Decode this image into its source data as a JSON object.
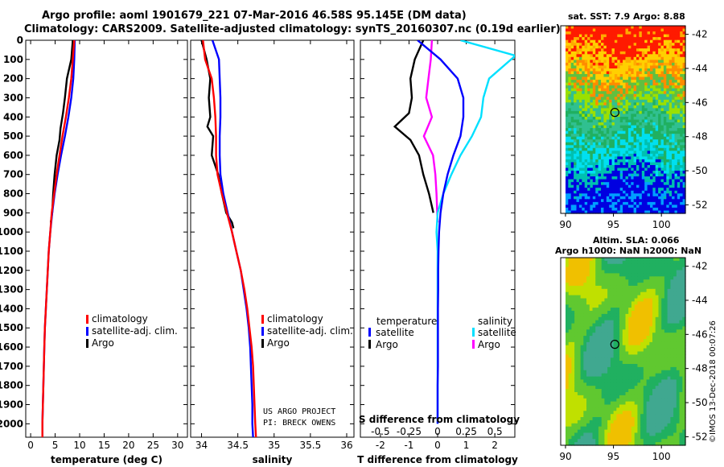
{
  "header": {
    "title_line1": "Argo profile: aoml 1901679_221 07-Mar-2016 46.58S 95.145E (DM data)",
    "title_line2": "Climatology: CARS2009. Satellite-adjusted climatology: synTS_20160307.nc (0.19d earlier)"
  },
  "colors": {
    "climatology": "#ff0000",
    "satellite": "#0000ff",
    "argo": "#000000",
    "satellite_salinity": "#00e0ff",
    "argo_salinity": "#ff00ff"
  },
  "chart_data": [
    {
      "type": "line",
      "name": "temperature-panel",
      "xlabel": "temperature (deg C)",
      "ylabel": "",
      "xlim": [
        -1,
        32
      ],
      "ylim": [
        2070,
        0
      ],
      "xticks": [
        "0",
        "5",
        "10",
        "15",
        "20",
        "25",
        "30"
      ],
      "xtick_values": [
        0,
        5,
        10,
        15,
        20,
        25,
        30
      ],
      "yticks": [
        "0",
        "100",
        "200",
        "300",
        "400",
        "500",
        "600",
        "700",
        "800",
        "900",
        "1000",
        "1100",
        "1200",
        "1300",
        "1400",
        "1500",
        "1600",
        "1700",
        "1800",
        "1900",
        "2000"
      ],
      "ytick_values": [
        0,
        100,
        200,
        300,
        400,
        500,
        600,
        700,
        800,
        900,
        1000,
        1100,
        1200,
        1300,
        1400,
        1500,
        1600,
        1700,
        1800,
        1900,
        2000
      ],
      "legend": [
        "climatology",
        "satellite-adj. clim.",
        "Argo"
      ],
      "series": [
        {
          "name": "climatology",
          "color": "#ff0000",
          "x": [
            8.9,
            8.6,
            8.3,
            7.8,
            7.2,
            6.5,
            5.9,
            5.3,
            4.8,
            4.3,
            4.0,
            3.7,
            3.5,
            3.3,
            3.1,
            2.9,
            2.8,
            2.7,
            2.6,
            2.5,
            2.4,
            2.4
          ],
          "y": [
            0,
            100,
            200,
            300,
            400,
            500,
            600,
            700,
            800,
            900,
            1000,
            1100,
            1200,
            1300,
            1400,
            1500,
            1600,
            1700,
            1800,
            1900,
            2000,
            2070
          ]
        },
        {
          "name": "satellite-adj. clim.",
          "color": "#0000ff",
          "x": [
            9.0,
            8.9,
            8.7,
            8.3,
            7.7,
            7.0,
            6.2,
            5.5,
            4.9,
            4.4,
            4.0,
            3.7,
            3.5,
            3.3,
            3.1,
            2.9,
            2.8,
            2.7,
            2.6,
            2.5,
            2.4,
            2.4
          ],
          "y": [
            0,
            100,
            200,
            300,
            400,
            500,
            600,
            700,
            800,
            900,
            1000,
            1100,
            1200,
            1300,
            1400,
            1500,
            1600,
            1700,
            1800,
            1900,
            2000,
            2070
          ]
        },
        {
          "name": "Argo",
          "color": "#000000",
          "x": [
            8.6,
            8.3,
            7.4,
            7.0,
            6.6,
            6.1,
            5.9,
            5.3,
            4.9,
            4.6,
            4.4,
            4.1
          ],
          "y": [
            0,
            100,
            200,
            300,
            380,
            460,
            520,
            600,
            700,
            800,
            900,
            950
          ]
        }
      ]
    },
    {
      "type": "line",
      "name": "salinity-panel",
      "xlabel": "salinity",
      "xlim": [
        33.85,
        36.1
      ],
      "ylim": [
        2070,
        0
      ],
      "xticks": [
        "34",
        "34.5",
        "35",
        "35.5",
        "36"
      ],
      "xtick_values": [
        34,
        34.5,
        35,
        35.5,
        36
      ],
      "legend": [
        "climatology",
        "satellite-adj. clim.",
        "Argo"
      ],
      "series": [
        {
          "name": "climatology",
          "color": "#ff0000",
          "x": [
            34.02,
            34.05,
            34.14,
            34.17,
            34.19,
            34.2,
            34.2,
            34.22,
            34.28,
            34.35,
            34.42,
            34.48,
            34.54,
            34.59,
            34.63,
            34.66,
            34.69,
            34.71,
            34.72,
            34.73,
            34.74,
            34.75
          ],
          "y": [
            0,
            100,
            200,
            300,
            400,
            500,
            600,
            700,
            800,
            900,
            1000,
            1100,
            1200,
            1300,
            1400,
            1500,
            1600,
            1700,
            1800,
            1900,
            2000,
            2070
          ]
        },
        {
          "name": "satellite-adj. clim.",
          "color": "#0000ff",
          "x": [
            34.15,
            34.24,
            34.25,
            34.26,
            34.26,
            34.25,
            34.25,
            34.26,
            34.3,
            34.36,
            34.42,
            34.48,
            34.54,
            34.58,
            34.62,
            34.65,
            34.67,
            34.68,
            34.69,
            34.7,
            34.7,
            34.71
          ],
          "y": [
            0,
            100,
            200,
            300,
            400,
            500,
            600,
            700,
            800,
            900,
            1000,
            1100,
            1200,
            1300,
            1400,
            1500,
            1600,
            1700,
            1800,
            1900,
            2000,
            2070
          ]
        },
        {
          "name": "Argo",
          "color": "#000000",
          "x": [
            34.0,
            34.07,
            34.12,
            34.1,
            34.12,
            34.08,
            34.16,
            34.14,
            34.23,
            34.28,
            34.34,
            34.42,
            34.44
          ],
          "y": [
            0,
            100,
            200,
            300,
            400,
            450,
            500,
            600,
            700,
            800,
            900,
            950,
            980
          ]
        }
      ]
    },
    {
      "type": "line",
      "name": "difference-panel",
      "xlabel": "T difference from climatology",
      "top_axis_label": "S difference from climatology",
      "xlim": [
        -2.7,
        2.7
      ],
      "ylim": [
        2070,
        0
      ],
      "xticks": [
        "-2",
        "-1",
        "0",
        "1",
        "2"
      ],
      "xtick_values": [
        -2,
        -1,
        0,
        1,
        2
      ],
      "s_xticks": [
        "-0.5",
        "-0.25",
        "0",
        "0.25",
        "0.5"
      ],
      "s_xtick_values": [
        -0.5,
        -0.25,
        0,
        0.25,
        0.5
      ],
      "legend_temperature": [
        "temperature",
        "satellite",
        "Argo"
      ],
      "legend_salinity": [
        "salinity",
        "satellite",
        "Argo"
      ],
      "series": [
        {
          "name": "temperature satellite",
          "color": "#0000ff",
          "x": [
            -0.7,
            0.1,
            0.7,
            0.9,
            0.9,
            0.8,
            0.55,
            0.35,
            0.2,
            0.1,
            0.05,
            0.03,
            0.02,
            0.02,
            0.01,
            0.01,
            0.01,
            0.01,
            0.0,
            0.0,
            0.0
          ],
          "y": [
            0,
            100,
            200,
            300,
            400,
            500,
            600,
            700,
            800,
            900,
            1000,
            1100,
            1200,
            1300,
            1400,
            1500,
            1600,
            1700,
            1800,
            1900,
            2000
          ]
        },
        {
          "name": "temperature Argo",
          "color": "#000000",
          "x": [
            -0.5,
            -0.8,
            -0.95,
            -0.9,
            -1.0,
            -1.5,
            -0.95,
            -0.65,
            -0.5,
            -0.3,
            -0.15
          ],
          "y": [
            0,
            100,
            200,
            300,
            380,
            450,
            520,
            600,
            700,
            800,
            900
          ]
        },
        {
          "name": "salinity satellite",
          "color": "#00e0ff",
          "x": [
            0.2,
            0.68,
            0.45,
            0.4,
            0.38,
            0.3,
            0.2,
            0.12,
            0.05,
            0.0,
            -0.01,
            0.0,
            0.0,
            0.0,
            0.0,
            0.0,
            0.0,
            0.0,
            0.0,
            0.0,
            0.0
          ],
          "y": [
            0,
            80,
            200,
            300,
            400,
            500,
            600,
            700,
            800,
            900,
            1000,
            1100,
            1200,
            1300,
            1400,
            1500,
            1600,
            1700,
            1800,
            1900,
            2000
          ]
        },
        {
          "name": "salinity Argo",
          "color": "#ff00ff",
          "x": [
            -0.05,
            -0.06,
            -0.08,
            -0.1,
            -0.05,
            -0.12,
            -0.04,
            -0.02,
            -0.01,
            0.0
          ],
          "y": [
            0,
            100,
            200,
            300,
            400,
            500,
            600,
            700,
            800,
            950
          ]
        }
      ]
    },
    {
      "type": "heatmap",
      "name": "sst-map",
      "title": "sat. SST: 7.9 Argo: 8.88",
      "xlim": [
        89.5,
        102.5
      ],
      "ylim": [
        -52.5,
        -41.5
      ],
      "xticks": [
        "90",
        "95",
        "100"
      ],
      "xtick_values": [
        90,
        95,
        100
      ],
      "yticks": [
        "-42",
        "-44",
        "-46",
        "-48",
        "-50",
        "-52"
      ],
      "ytick_values": [
        -42,
        -44,
        -46,
        -48,
        -50,
        -52
      ],
      "float_position": [
        95.145,
        -46.58
      ]
    },
    {
      "type": "heatmap",
      "name": "sla-map",
      "title_line1": "Altim. SLA: 0.066",
      "title_line2": "Argo h1000: NaN h2000: NaN",
      "xlim": [
        89.5,
        102.5
      ],
      "ylim": [
        -52.5,
        -41.5
      ],
      "xticks": [
        "90",
        "95",
        "100"
      ],
      "xtick_values": [
        90,
        95,
        100
      ],
      "yticks": [
        "-42",
        "-44",
        "-46",
        "-48",
        "-50",
        "-52"
      ],
      "ytick_values": [
        -42,
        -44,
        -46,
        -48,
        -50,
        -52
      ],
      "float_position": [
        95.145,
        -46.58
      ]
    }
  ],
  "credits": {
    "line1": "US ARGO PROJECT",
    "line2": "PI: BRECK OWENS"
  },
  "footer": {
    "imos_stamp": "©IMOS 13-Dec-2018 00:07:26"
  }
}
